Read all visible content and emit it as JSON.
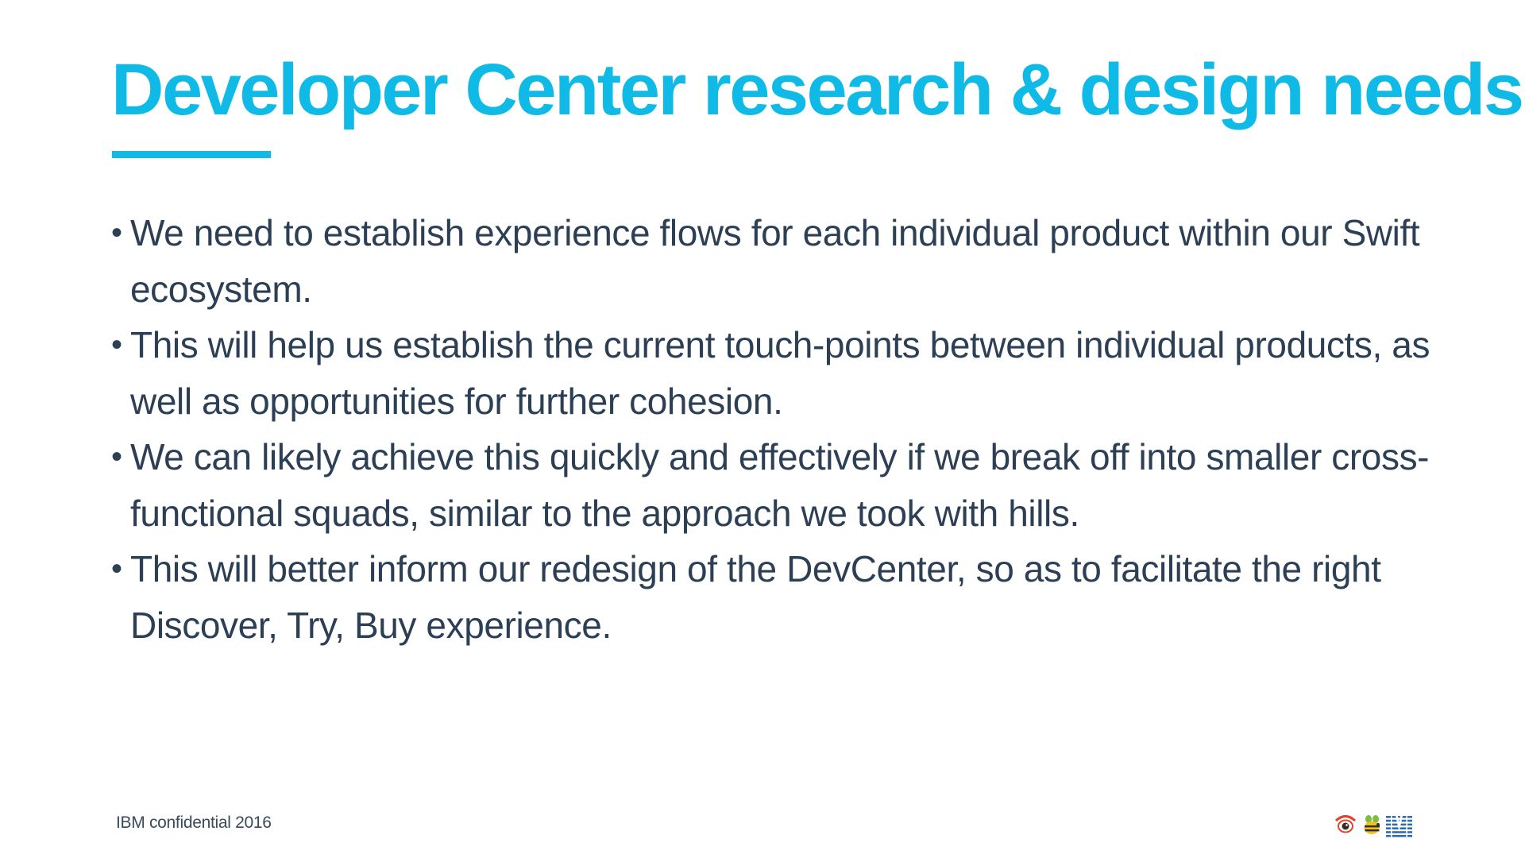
{
  "colors": {
    "accent": "#0fbbe6",
    "body_text": "#2c3f55",
    "footer_text": "#3a4a5c",
    "background": "#ffffff"
  },
  "slide": {
    "title": "Developer Center research & design needs",
    "bullet_glyph": "•",
    "bullets": [
      {
        "text": "We need to establish experience flows for each individual product within our Swift ecosystem."
      },
      {
        "text": "This will help us establish the current touch-points between individual products, as well as opportunities for further cohesion."
      },
      {
        "text": "We can likely achieve this quickly and effectively if we break off into smaller cross-functional squads, similar to the approach we took with hills."
      },
      {
        "text": "This will better inform our redesign of the DevCenter, so as to facilitate the right Discover, Try, Buy experience."
      }
    ],
    "footer": "IBM confidential 2016",
    "logo_icon": "ibm-eye-bee-m-logo-icon"
  }
}
